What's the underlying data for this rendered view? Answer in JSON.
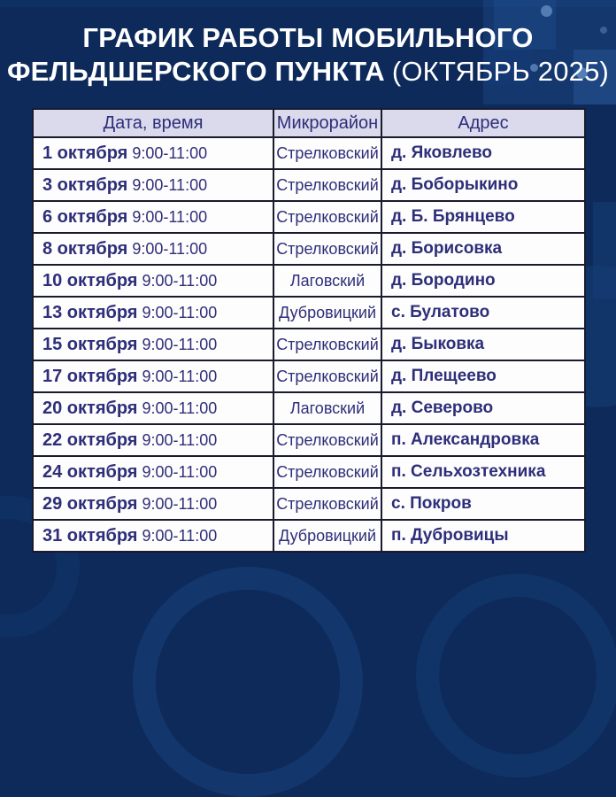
{
  "title": {
    "line1": "ГРАФИК РАБОТЫ МОБИЛЬНОГО",
    "line2_bold": "ФЕЛЬДШЕРСКОГО ПУНКТА",
    "line2_regular": "(ОКТЯБРЬ 2025)"
  },
  "table": {
    "headers": [
      "Дата, время",
      "Микрорайон",
      "Адрес"
    ],
    "rows": [
      {
        "date": "1 октября",
        "time": "9:00-11:00",
        "district": "Стрелковский",
        "address": "д. Яковлево"
      },
      {
        "date": "3 октября",
        "time": "9:00-11:00",
        "district": "Стрелковский",
        "address": "д. Боборыкино"
      },
      {
        "date": "6 октября",
        "time": "9:00-11:00",
        "district": "Стрелковский",
        "address": "д. Б. Брянцево"
      },
      {
        "date": "8 октября",
        "time": "9:00-11:00",
        "district": "Стрелковский",
        "address": "д. Борисовка"
      },
      {
        "date": "10 октября",
        "time": "9:00-11:00",
        "district": "Лаговский",
        "address": "д. Бородино"
      },
      {
        "date": "13 октября",
        "time": "9:00-11:00",
        "district": "Дубровицкий",
        "address": "с. Булатово"
      },
      {
        "date": "15 октября",
        "time": "9:00-11:00",
        "district": "Стрелковский",
        "address": "д. Быковка"
      },
      {
        "date": "17 октября",
        "time": "9:00-11:00",
        "district": "Стрелковский",
        "address": "д. Плещеево"
      },
      {
        "date": "20 октября",
        "time": "9:00-11:00",
        "district": "Лаговский",
        "address": "д. Северово"
      },
      {
        "date": "22 октября",
        "time": "9:00-11:00",
        "district": "Стрелковский",
        "address": "п. Александровка"
      },
      {
        "date": "24 октября",
        "time": "9:00-11:00",
        "district": "Стрелковский",
        "address": "п. Сельхозтехника"
      },
      {
        "date": "29 октября",
        "time": "9:00-11:00",
        "district": "Стрелковский",
        "address": "с. Покров"
      },
      {
        "date": "31 октября",
        "time": "9:00-11:00",
        "district": "Дубровицкий",
        "address": "п. Дубровицы"
      }
    ]
  },
  "colors": {
    "background": "#0d2a5a",
    "pattern": "#2c6ab4",
    "header_bg": "#dadaec",
    "row_bg": "#fdfdfd",
    "text": "#2e2e7a",
    "border": "#1a1a2e",
    "title_text": "#ffffff"
  }
}
